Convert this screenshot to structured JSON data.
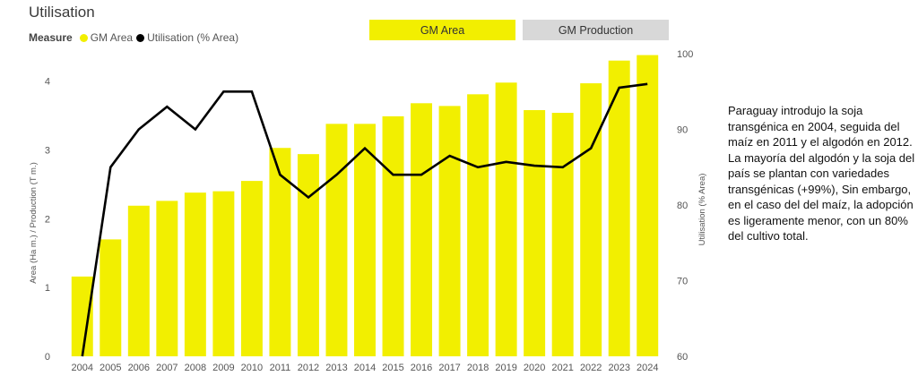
{
  "title": "Utilisation",
  "legend": {
    "title": "Measure",
    "items": [
      {
        "label": "GM Area",
        "color": "#f2ef00"
      },
      {
        "label": "Utilisation (% Area)",
        "color": "#000000"
      }
    ]
  },
  "toggles": {
    "area_label": "GM Area",
    "production_label": "GM Production"
  },
  "note": {
    "paragraph1": "Paraguay introdujo la soja transgénica en 2004, seguida del maíz en 2011 y el algodón en 2012.",
    "paragraph2": "La mayoría del algodón y la soja del país se plantan con variedades transgénicas (+99%), Sin embargo, en el caso del del maíz,  la adopción es ligeramente menor, con un 80% del cultivo total."
  },
  "chart_data": {
    "type": "bar",
    "categories": [
      "2004",
      "2005",
      "2006",
      "2007",
      "2008",
      "2009",
      "2010",
      "2011",
      "2012",
      "2013",
      "2014",
      "2015",
      "2016",
      "2017",
      "2018",
      "2019",
      "2020",
      "2021",
      "2022",
      "2023",
      "2024"
    ],
    "series": [
      {
        "name": "GM Area",
        "type": "bar",
        "axis": "left",
        "color": "#f2ef00",
        "values": [
          1.16,
          1.7,
          2.19,
          2.26,
          2.38,
          2.4,
          2.55,
          3.03,
          2.94,
          3.38,
          3.38,
          3.49,
          3.68,
          3.64,
          3.81,
          3.98,
          3.58,
          3.54,
          3.97,
          4.3,
          4.38
        ]
      },
      {
        "name": "Utilisation (% Area)",
        "type": "line",
        "axis": "right",
        "color": "#000000",
        "values": [
          60,
          85,
          90,
          93,
          90,
          95,
          95,
          84,
          81,
          84,
          87.5,
          84,
          84,
          86.5,
          85,
          85.7,
          85.2,
          85.0,
          87.5,
          95.5,
          96
        ]
      }
    ],
    "ylabel": "Area (Ha m.) / Production (T m.)",
    "y2label": "Utilisation (% Area)",
    "ylim": [
      0,
      4.4
    ],
    "yticks": [
      0,
      1,
      2,
      3,
      4
    ],
    "y2lim": [
      60,
      100
    ],
    "y2ticks": [
      60,
      70,
      80,
      90,
      100
    ]
  }
}
